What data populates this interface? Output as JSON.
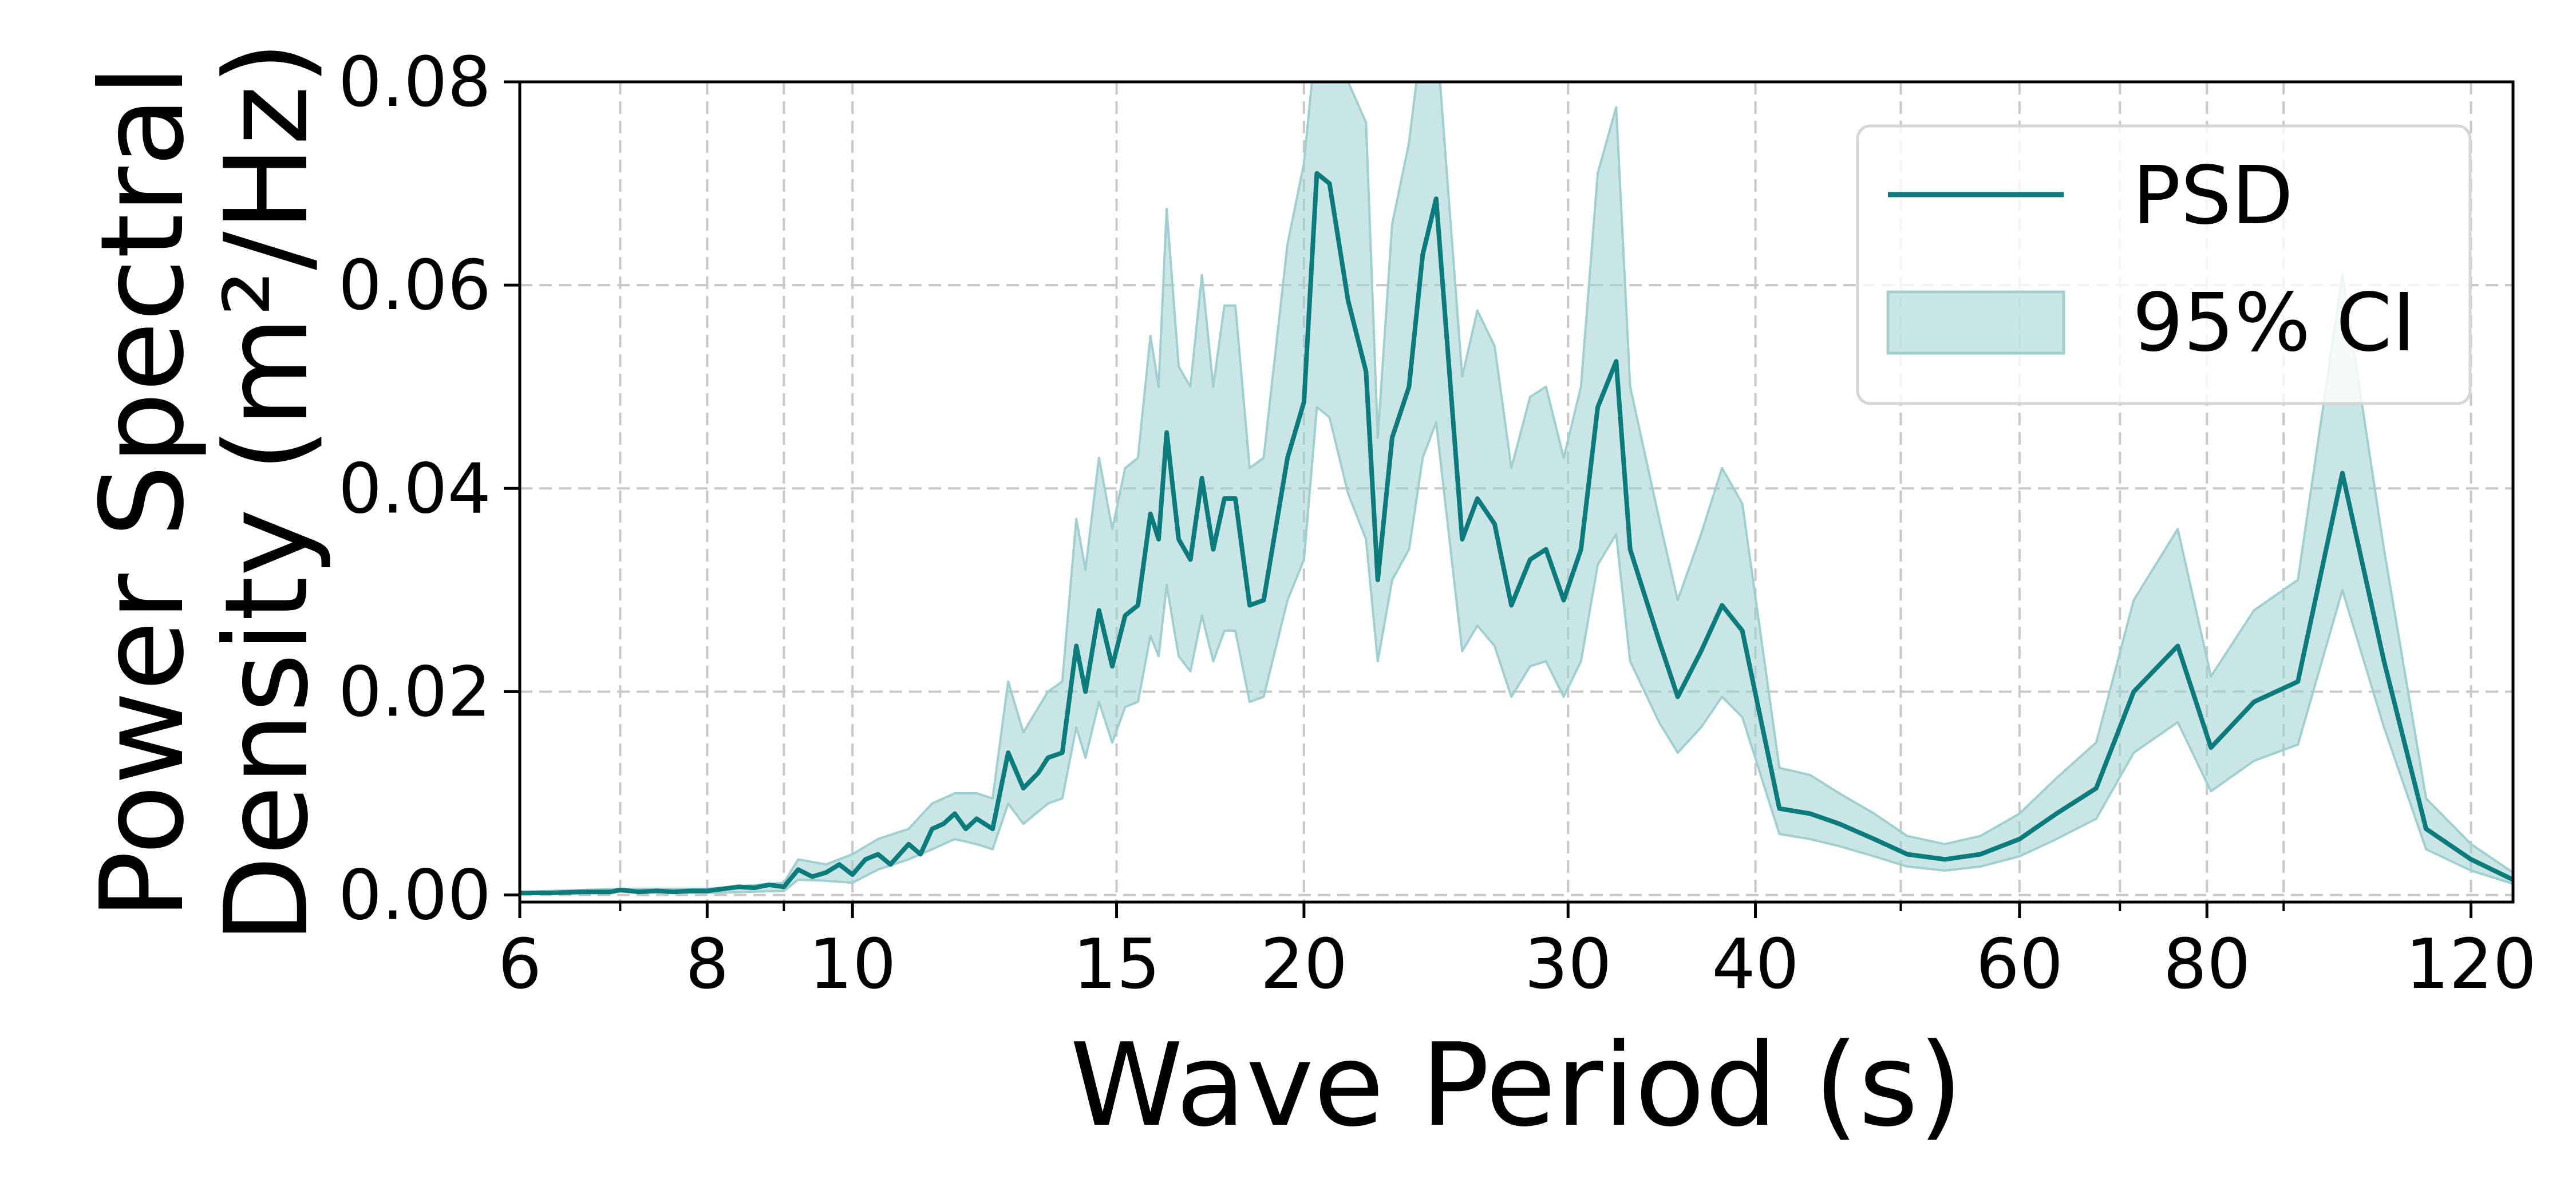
{
  "chart_data": {
    "type": "line",
    "title": "",
    "xlabel": "Wave Period (s)",
    "ylabel_lines": [
      "Power Spectral",
      "Density (m²/Hz)"
    ],
    "xscale": "log",
    "xlim": [
      6,
      128
    ],
    "ylim": [
      -0.0007,
      0.08
    ],
    "x_ticks": [
      6,
      8,
      10,
      15,
      20,
      30,
      40,
      60,
      80,
      120
    ],
    "x_tick_labels": [
      "6",
      "8",
      "10",
      "15",
      "20",
      "30",
      "40",
      "60",
      "80",
      "120"
    ],
    "x_minor_ticks": [
      7,
      9,
      50,
      70,
      90
    ],
    "y_ticks": [
      0,
      0.02,
      0.04,
      0.06,
      0.08
    ],
    "y_tick_labels": [
      "0.00",
      "0.02",
      "0.04",
      "0.06",
      "0.08"
    ],
    "grid": true,
    "legend_position": "top-right",
    "colors": {
      "line": "#0b7b7b",
      "band": "#9fcfcf"
    },
    "series": [
      {
        "name": "PSD",
        "kind": "line",
        "points": [
          [
            6.0,
            0.0002
          ],
          [
            6.3,
            0.0002
          ],
          [
            6.6,
            0.0003
          ],
          [
            6.9,
            0.0003
          ],
          [
            7.0,
            0.0005
          ],
          [
            7.2,
            0.0003
          ],
          [
            7.4,
            0.0004
          ],
          [
            7.6,
            0.0003
          ],
          [
            7.8,
            0.0004
          ],
          [
            8.0,
            0.0004
          ],
          [
            8.2,
            0.0006
          ],
          [
            8.4,
            0.0008
          ],
          [
            8.6,
            0.0007
          ],
          [
            8.8,
            0.001
          ],
          [
            9.0,
            0.0008
          ],
          [
            9.2,
            0.0025
          ],
          [
            9.4,
            0.0018
          ],
          [
            9.6,
            0.0022
          ],
          [
            9.8,
            0.003
          ],
          [
            10.0,
            0.002
          ],
          [
            10.2,
            0.0035
          ],
          [
            10.4,
            0.004
          ],
          [
            10.6,
            0.003
          ],
          [
            10.9,
            0.005
          ],
          [
            11.1,
            0.004
          ],
          [
            11.3,
            0.0065
          ],
          [
            11.5,
            0.007
          ],
          [
            11.7,
            0.008
          ],
          [
            11.9,
            0.0065
          ],
          [
            12.1,
            0.0075
          ],
          [
            12.4,
            0.0065
          ],
          [
            12.7,
            0.014
          ],
          [
            13.0,
            0.0105
          ],
          [
            13.3,
            0.012
          ],
          [
            13.5,
            0.0135
          ],
          [
            13.8,
            0.014
          ],
          [
            14.1,
            0.0245
          ],
          [
            14.3,
            0.02
          ],
          [
            14.6,
            0.028
          ],
          [
            14.9,
            0.0225
          ],
          [
            15.2,
            0.0275
          ],
          [
            15.5,
            0.0285
          ],
          [
            15.8,
            0.0375
          ],
          [
            16.0,
            0.035
          ],
          [
            16.2,
            0.0455
          ],
          [
            16.5,
            0.035
          ],
          [
            16.8,
            0.033
          ],
          [
            17.1,
            0.041
          ],
          [
            17.4,
            0.034
          ],
          [
            17.7,
            0.039
          ],
          [
            18.0,
            0.039
          ],
          [
            18.4,
            0.0285
          ],
          [
            18.8,
            0.029
          ],
          [
            19.5,
            0.043
          ],
          [
            20.0,
            0.0485
          ],
          [
            20.4,
            0.071
          ],
          [
            20.8,
            0.07
          ],
          [
            21.4,
            0.0585
          ],
          [
            22.0,
            0.0515
          ],
          [
            22.4,
            0.031
          ],
          [
            22.9,
            0.045
          ],
          [
            23.5,
            0.05
          ],
          [
            24.0,
            0.063
          ],
          [
            24.5,
            0.0685
          ],
          [
            25.5,
            0.035
          ],
          [
            26.1,
            0.039
          ],
          [
            26.8,
            0.0365
          ],
          [
            27.5,
            0.0285
          ],
          [
            28.3,
            0.033
          ],
          [
            29.0,
            0.034
          ],
          [
            29.8,
            0.029
          ],
          [
            30.6,
            0.034
          ],
          [
            31.4,
            0.048
          ],
          [
            32.3,
            0.0525
          ],
          [
            33.0,
            0.034
          ],
          [
            34.5,
            0.025
          ],
          [
            35.5,
            0.0195
          ],
          [
            36.8,
            0.024
          ],
          [
            38.0,
            0.0285
          ],
          [
            39.2,
            0.026
          ],
          [
            41.5,
            0.0085
          ],
          [
            43.5,
            0.008
          ],
          [
            45.5,
            0.007
          ],
          [
            48.0,
            0.0055
          ],
          [
            50.5,
            0.004
          ],
          [
            53.5,
            0.0035
          ],
          [
            56.5,
            0.004
          ],
          [
            60.0,
            0.0055
          ],
          [
            63.5,
            0.008
          ],
          [
            67.5,
            0.0105
          ],
          [
            71.5,
            0.02
          ],
          [
            76.5,
            0.0245
          ],
          [
            80.5,
            0.0145
          ],
          [
            86.0,
            0.019
          ],
          [
            92.0,
            0.021
          ],
          [
            98.5,
            0.0415
          ],
          [
            105.0,
            0.023
          ],
          [
            112.0,
            0.0065
          ],
          [
            120.0,
            0.0035
          ],
          [
            128.0,
            0.0015
          ],
          [
            135.0,
            0.0012
          ],
          [
            140.0,
            0.001
          ]
        ]
      },
      {
        "name": "95% CI",
        "kind": "band",
        "upper": [
          [
            6.0,
            0.0003
          ],
          [
            7.0,
            0.0006
          ],
          [
            8.0,
            0.0006
          ],
          [
            9.0,
            0.0012
          ],
          [
            9.2,
            0.0035
          ],
          [
            9.6,
            0.003
          ],
          [
            10.0,
            0.004
          ],
          [
            10.4,
            0.0055
          ],
          [
            10.9,
            0.0065
          ],
          [
            11.3,
            0.009
          ],
          [
            11.7,
            0.01
          ],
          [
            12.1,
            0.01
          ],
          [
            12.4,
            0.0095
          ],
          [
            12.7,
            0.021
          ],
          [
            13.0,
            0.016
          ],
          [
            13.5,
            0.02
          ],
          [
            13.8,
            0.021
          ],
          [
            14.1,
            0.037
          ],
          [
            14.3,
            0.032
          ],
          [
            14.6,
            0.043
          ],
          [
            14.9,
            0.036
          ],
          [
            15.2,
            0.042
          ],
          [
            15.5,
            0.043
          ],
          [
            15.8,
            0.055
          ],
          [
            16.0,
            0.05
          ],
          [
            16.2,
            0.0675
          ],
          [
            16.5,
            0.052
          ],
          [
            16.8,
            0.05
          ],
          [
            17.1,
            0.061
          ],
          [
            17.4,
            0.05
          ],
          [
            17.7,
            0.058
          ],
          [
            18.0,
            0.058
          ],
          [
            18.4,
            0.042
          ],
          [
            18.8,
            0.043
          ],
          [
            19.5,
            0.064
          ],
          [
            20.0,
            0.072
          ],
          [
            20.4,
            0.085
          ],
          [
            20.8,
            0.085
          ],
          [
            21.4,
            0.08
          ],
          [
            22.0,
            0.076
          ],
          [
            22.4,
            0.045
          ],
          [
            22.9,
            0.066
          ],
          [
            23.5,
            0.074
          ],
          [
            24.0,
            0.085
          ],
          [
            24.5,
            0.085
          ],
          [
            25.5,
            0.051
          ],
          [
            26.1,
            0.0575
          ],
          [
            26.8,
            0.054
          ],
          [
            27.5,
            0.042
          ],
          [
            28.3,
            0.049
          ],
          [
            29.0,
            0.05
          ],
          [
            29.8,
            0.043
          ],
          [
            30.6,
            0.05
          ],
          [
            31.4,
            0.071
          ],
          [
            32.3,
            0.0775
          ],
          [
            33.0,
            0.05
          ],
          [
            34.5,
            0.037
          ],
          [
            35.5,
            0.029
          ],
          [
            36.8,
            0.0355
          ],
          [
            38.0,
            0.042
          ],
          [
            39.2,
            0.0385
          ],
          [
            41.5,
            0.0125
          ],
          [
            43.5,
            0.0118
          ],
          [
            45.5,
            0.01
          ],
          [
            48.0,
            0.008
          ],
          [
            50.5,
            0.0058
          ],
          [
            53.5,
            0.005
          ],
          [
            56.5,
            0.0058
          ],
          [
            60.0,
            0.008
          ],
          [
            63.5,
            0.0115
          ],
          [
            67.5,
            0.015
          ],
          [
            71.5,
            0.029
          ],
          [
            76.5,
            0.036
          ],
          [
            80.5,
            0.0215
          ],
          [
            86.0,
            0.028
          ],
          [
            92.0,
            0.031
          ],
          [
            98.5,
            0.061
          ],
          [
            105.0,
            0.034
          ],
          [
            112.0,
            0.0095
          ],
          [
            120.0,
            0.005
          ],
          [
            128.0,
            0.0022
          ],
          [
            140.0,
            0.0014
          ]
        ],
        "lower": [
          [
            6.0,
            0.0001
          ],
          [
            7.0,
            0.0003
          ],
          [
            8.0,
            0.0002
          ],
          [
            9.0,
            0.0004
          ],
          [
            9.2,
            0.0015
          ],
          [
            9.6,
            0.0014
          ],
          [
            10.0,
            0.0012
          ],
          [
            10.4,
            0.0025
          ],
          [
            10.9,
            0.0035
          ],
          [
            11.3,
            0.0045
          ],
          [
            11.7,
            0.0055
          ],
          [
            12.1,
            0.005
          ],
          [
            12.4,
            0.0045
          ],
          [
            12.7,
            0.009
          ],
          [
            13.0,
            0.007
          ],
          [
            13.5,
            0.009
          ],
          [
            13.8,
            0.0095
          ],
          [
            14.1,
            0.0165
          ],
          [
            14.3,
            0.0135
          ],
          [
            14.6,
            0.019
          ],
          [
            14.9,
            0.015
          ],
          [
            15.2,
            0.0185
          ],
          [
            15.5,
            0.019
          ],
          [
            15.8,
            0.0255
          ],
          [
            16.0,
            0.0235
          ],
          [
            16.2,
            0.0305
          ],
          [
            16.5,
            0.0235
          ],
          [
            16.8,
            0.022
          ],
          [
            17.1,
            0.0275
          ],
          [
            17.4,
            0.023
          ],
          [
            17.7,
            0.026
          ],
          [
            18.0,
            0.026
          ],
          [
            18.4,
            0.019
          ],
          [
            18.8,
            0.0195
          ],
          [
            19.5,
            0.029
          ],
          [
            20.0,
            0.033
          ],
          [
            20.4,
            0.048
          ],
          [
            20.8,
            0.047
          ],
          [
            21.4,
            0.0395
          ],
          [
            22.0,
            0.035
          ],
          [
            22.4,
            0.023
          ],
          [
            22.9,
            0.031
          ],
          [
            23.5,
            0.034
          ],
          [
            24.0,
            0.043
          ],
          [
            24.5,
            0.0465
          ],
          [
            25.5,
            0.024
          ],
          [
            26.1,
            0.0265
          ],
          [
            26.8,
            0.0245
          ],
          [
            27.5,
            0.0195
          ],
          [
            28.3,
            0.0225
          ],
          [
            29.0,
            0.023
          ],
          [
            29.8,
            0.0195
          ],
          [
            30.6,
            0.023
          ],
          [
            31.4,
            0.0325
          ],
          [
            32.3,
            0.0355
          ],
          [
            33.0,
            0.023
          ],
          [
            34.5,
            0.017
          ],
          [
            35.5,
            0.014
          ],
          [
            36.8,
            0.0165
          ],
          [
            38.0,
            0.0195
          ],
          [
            39.2,
            0.0175
          ],
          [
            41.5,
            0.006
          ],
          [
            43.5,
            0.0055
          ],
          [
            45.5,
            0.0048
          ],
          [
            48.0,
            0.0038
          ],
          [
            50.5,
            0.0028
          ],
          [
            53.5,
            0.0024
          ],
          [
            56.5,
            0.0028
          ],
          [
            60.0,
            0.0038
          ],
          [
            63.5,
            0.0055
          ],
          [
            67.5,
            0.0075
          ],
          [
            71.5,
            0.014
          ],
          [
            76.5,
            0.017
          ],
          [
            80.5,
            0.0102
          ],
          [
            86.0,
            0.0132
          ],
          [
            92.0,
            0.0148
          ],
          [
            98.5,
            0.03
          ],
          [
            105.0,
            0.0165
          ],
          [
            112.0,
            0.0045
          ],
          [
            120.0,
            0.0024
          ],
          [
            128.0,
            0.0011
          ],
          [
            140.0,
            0.0008
          ]
        ]
      }
    ],
    "legend_entries": [
      {
        "label": "PSD",
        "kind": "line"
      },
      {
        "label": "95% CI",
        "kind": "band"
      }
    ]
  }
}
